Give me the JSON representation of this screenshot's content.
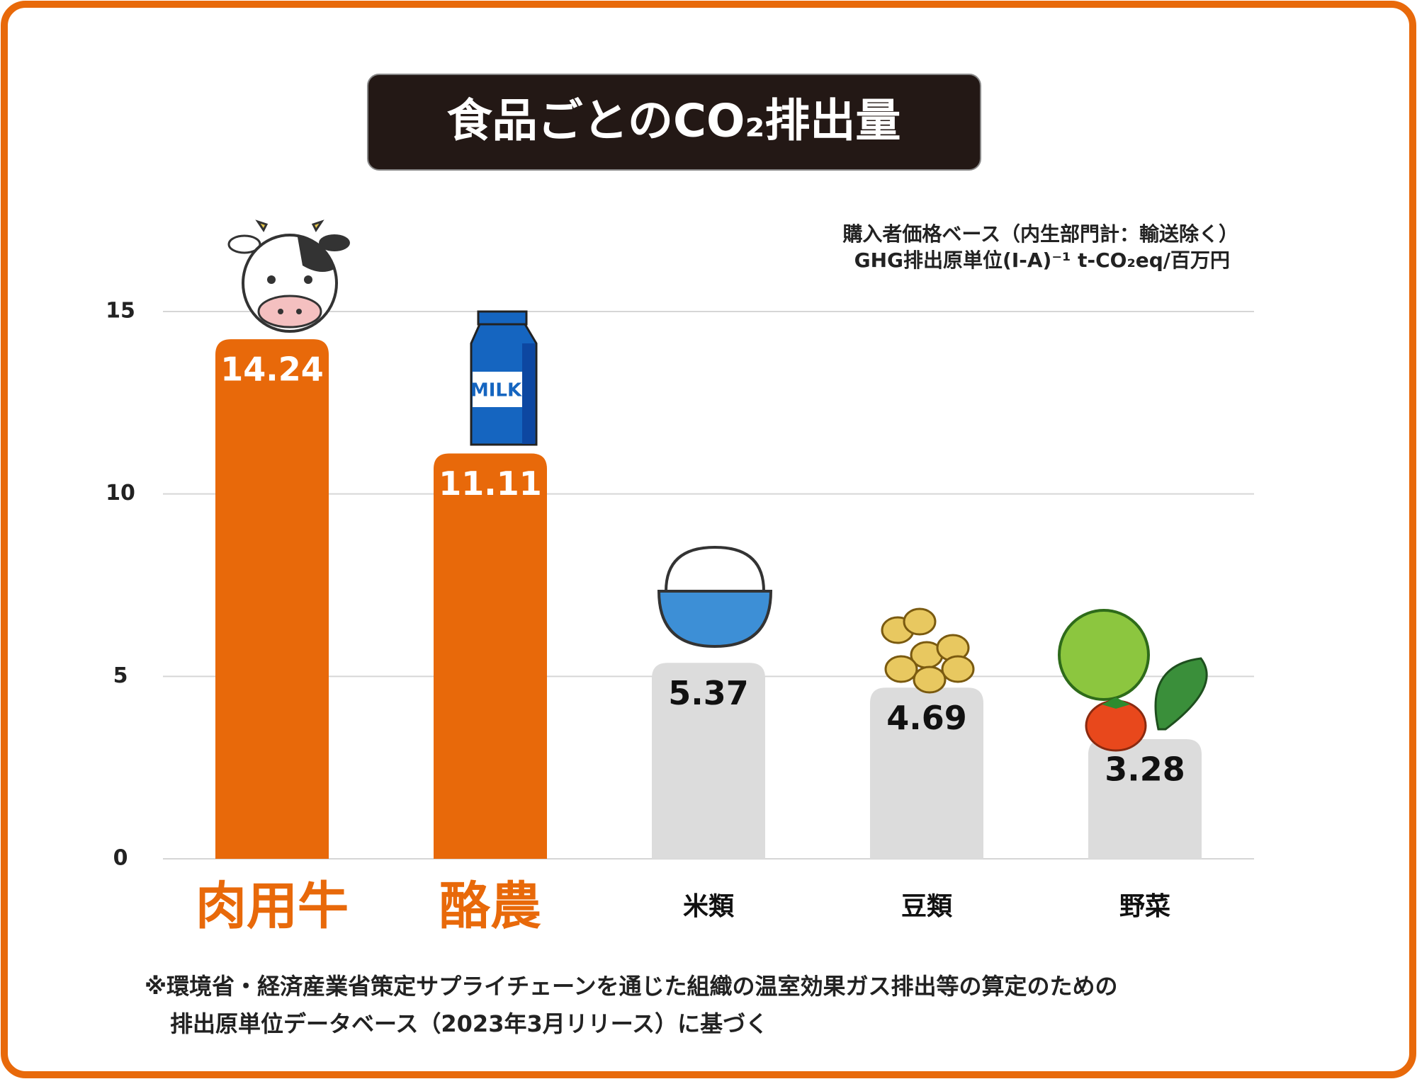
{
  "chart_data": {
    "type": "bar",
    "title": "食品ごとのCO₂排出量",
    "unit_note": [
      "購入者価格ベース（内生部門計：輸送除く）",
      "GHG排出原単位(I-A)⁻¹ t-CO₂eq/百万円"
    ],
    "categories": [
      "肉用牛",
      "酪農",
      "米類",
      "豆類",
      "野菜"
    ],
    "values": [
      14.24,
      11.11,
      5.37,
      4.69,
      3.28
    ],
    "colors": [
      "#e8690a",
      "#e8690a",
      "#dcdcdc",
      "#dcdcdc",
      "#dcdcdc"
    ],
    "highlight": [
      true,
      true,
      false,
      false,
      false
    ],
    "ylim": [
      0,
      15
    ],
    "yticks": [
      0,
      5,
      10,
      15
    ],
    "grid": true,
    "footnote": [
      "※環境省・経済産業省策定サプライチェーンを通じた組織の温室効果ガス排出等の算定のための",
      "排出原単位データベース（2023年3月リリース）に基づく"
    ]
  }
}
